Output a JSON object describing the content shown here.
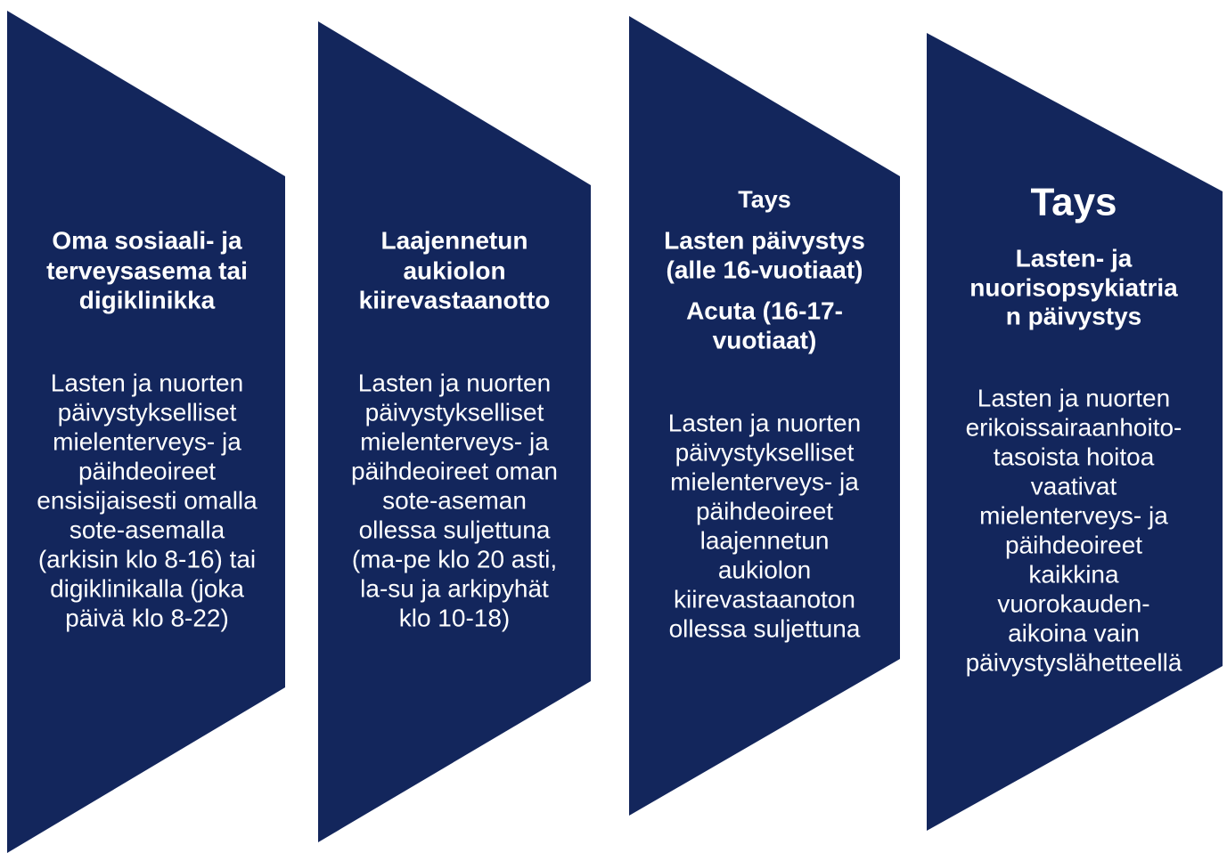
{
  "panels": [
    {
      "title_lines": [
        "Oma sosiaali- ja",
        "terveysasema tai",
        "digiklinikka"
      ],
      "body_lines": [
        "Lasten ja nuorten",
        "päivystykselliset",
        "mielenterveys- ja",
        "päihdeoireet",
        "ensisijaisesti omalla",
        "sote-asemalla",
        "(arkisin klo 8-16) tai",
        "digiklinikalla (joka",
        "päivä klo 8-22)"
      ]
    },
    {
      "title_lines": [
        "Laajennetun",
        "aukiolon",
        "kiirevastaanotto"
      ],
      "body_lines": [
        "Lasten ja nuorten",
        "päivystykselliset",
        "mielenterveys- ja",
        "päihdeoireet oman",
        "sote-aseman",
        "ollessa suljettuna",
        "(ma-pe klo 20 asti,",
        "la-su ja arkipyhät",
        "klo 10-18)"
      ]
    },
    {
      "heading": "Tays",
      "title_lines": [
        "Lasten päivystys",
        "(alle 16-vuotiaat)",
        "Acuta (16-17-",
        "vuotiaat)"
      ],
      "body_lines": [
        "Lasten ja nuorten",
        "päivystykselliset",
        "mielenterveys- ja",
        "päihdeoireet",
        "laajennetun",
        "aukiolon",
        "kiirevastaanoton",
        "ollessa suljettuna"
      ]
    },
    {
      "heading": "Tays",
      "title_lines": [
        "Lasten- ja",
        "nuorisopsykiatria",
        "n päivystys"
      ],
      "body_lines": [
        "Lasten ja nuorten",
        "erikoissairaanhoito-",
        "tasoista hoitoa",
        "vaativat",
        "mielenterveys- ja",
        "päihdeoireet",
        "kaikkina",
        "vuorokauden-",
        "aikoina vain",
        "päivystyslähetteellä"
      ]
    }
  ]
}
